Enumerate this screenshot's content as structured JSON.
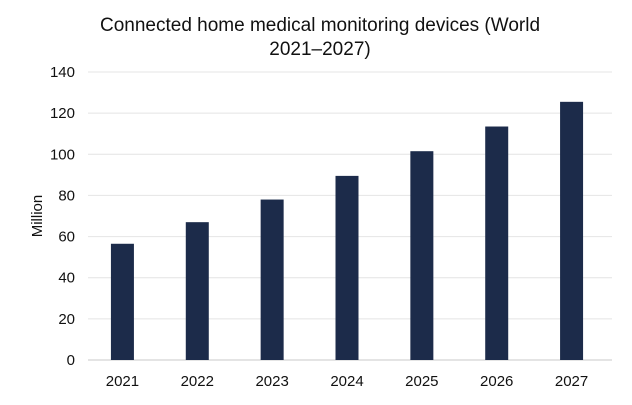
{
  "chart_data": {
    "type": "bar",
    "title": "Connected home medical monitoring devices (World 2021–2027)",
    "title_lines": [
      "Connected home medical monitoring devices (World",
      "2021–2027)"
    ],
    "xlabel": "",
    "ylabel": "Million",
    "categories": [
      "2021",
      "2022",
      "2023",
      "2024",
      "2025",
      "2026",
      "2027"
    ],
    "values": [
      56.5,
      67,
      78,
      89.5,
      101.5,
      113.5,
      125.5
    ],
    "ylim": [
      0,
      140
    ],
    "yticks": [
      0,
      20,
      40,
      60,
      80,
      100,
      120,
      140
    ],
    "grid": true,
    "bar_color": "#1c2b4a",
    "grid_color": "#e4e4e4",
    "axis_color": "#c8c8c8"
  }
}
